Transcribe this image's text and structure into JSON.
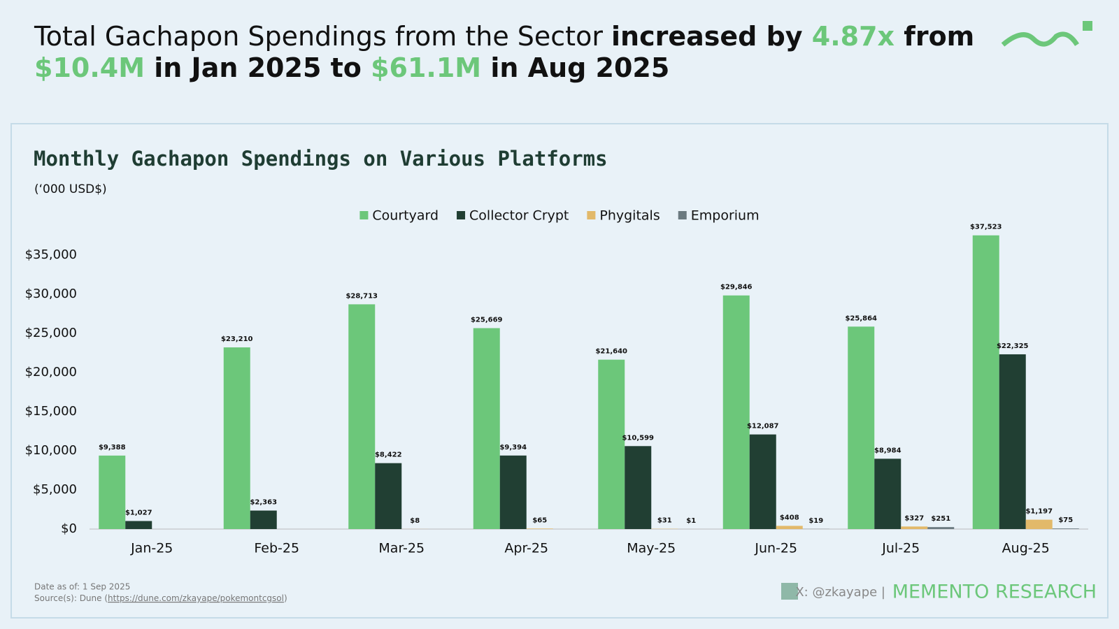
{
  "header": {
    "title": [
      "Total Gachapon Spendings from the Sector ",
      "increased by ",
      "4.87x",
      " from",
      "$10.4M",
      " in Jan 2025 to ",
      "$61.1M",
      " in Aug 2025"
    ]
  },
  "chart_data": {
    "type": "bar",
    "title": "Monthly Gachapon Spendings on Various Platforms",
    "subtitle": "(‘000 USD$)",
    "categories": [
      "Jan-25",
      "Feb-25",
      "Mar-25",
      "Apr-25",
      "May-25",
      "Jun-25",
      "Jul-25",
      "Aug-25"
    ],
    "series": [
      {
        "name": "Courtyard",
        "color": "#6cc77a",
        "values": [
          9388,
          23210,
          28713,
          25669,
          21640,
          29846,
          25864,
          37523
        ],
        "value_labels": [
          "$9,388",
          "$23,210",
          "$28,713",
          "$25,669",
          "$21,640",
          "$29,846",
          "$25,864",
          "$37,523"
        ]
      },
      {
        "name": "Collector Crypt",
        "color": "#213f33",
        "values": [
          1027,
          2363,
          8422,
          9394,
          10599,
          12087,
          8984,
          22325
        ],
        "value_labels": [
          "$1,027",
          "$2,363",
          "$8,422",
          "$9,394",
          "$10,599",
          "$12,087",
          "$8,984",
          "$22,325"
        ]
      },
      {
        "name": "Phygitals",
        "color": "#e2b96a",
        "values": [
          null,
          null,
          8,
          65,
          31,
          408,
          327,
          1197
        ],
        "value_labels": [
          null,
          null,
          "$8",
          "$65",
          "$31",
          "$408",
          "$327",
          "$1,197"
        ]
      },
      {
        "name": "Emporium",
        "color": "#6b7a80",
        "values": [
          null,
          null,
          null,
          null,
          1,
          19,
          251,
          75
        ],
        "value_labels": [
          null,
          null,
          null,
          null,
          "$1",
          "$19",
          "$251",
          "$75"
        ]
      }
    ],
    "ylim": [
      0,
      40000
    ],
    "yticks": [
      {
        "value": 0,
        "label": "$0"
      },
      {
        "value": 5000,
        "label": "$5,000"
      },
      {
        "value": 10000,
        "label": "$10,000"
      },
      {
        "value": 15000,
        "label": "$15,000"
      },
      {
        "value": 20000,
        "label": "$20,000"
      },
      {
        "value": 25000,
        "label": "$25,000"
      },
      {
        "value": 30000,
        "label": "$30,000"
      },
      {
        "value": 35000,
        "label": "$35,000"
      }
    ],
    "grid": false,
    "legend": "top"
  },
  "footer": {
    "date": "Date as of: 1 Sep 2025",
    "source": [
      "Source(s): Dune (",
      "https://dune.com/zkayape/pokemontcgsol",
      ")"
    ],
    "handle": "X: @zkayape |",
    "brand": "MEMENTO RESEARCH"
  }
}
